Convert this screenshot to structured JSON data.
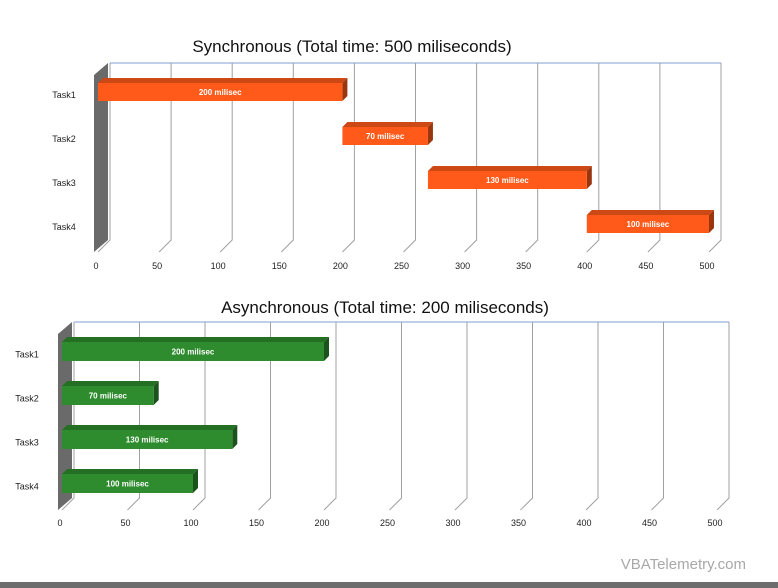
{
  "chart_data": [
    {
      "type": "bar",
      "orientation": "horizontal",
      "style": "3d-floating-bars",
      "title": "Synchronous (Total time: 500 miliseconds)",
      "categories": [
        "Task1",
        "Task2",
        "Task3",
        "Task4"
      ],
      "starts": [
        0,
        200,
        270,
        400
      ],
      "values": [
        200,
        70,
        130,
        100
      ],
      "data_labels": [
        "200 milisec",
        "70 milisec",
        "130 milisec",
        "100 milisec"
      ],
      "xlim": [
        0,
        500
      ],
      "xticks": [
        "0",
        "50",
        "100",
        "150",
        "200",
        "250",
        "300",
        "350",
        "400",
        "450",
        "500"
      ],
      "grid": true,
      "color": "#ff5a1a"
    },
    {
      "type": "bar",
      "orientation": "horizontal",
      "style": "3d-floating-bars",
      "title": "Asynchronous (Total time: 200 miliseconds)",
      "categories": [
        "Task1",
        "Task2",
        "Task3",
        "Task4"
      ],
      "starts": [
        0,
        0,
        0,
        0
      ],
      "values": [
        200,
        70,
        130,
        100
      ],
      "data_labels": [
        "200 milisec",
        "70 milisec",
        "130 milisec",
        "100 milisec"
      ],
      "xlim": [
        0,
        500
      ],
      "xticks": [
        "0",
        "50",
        "100",
        "150",
        "200",
        "250",
        "300",
        "350",
        "400",
        "450",
        "500"
      ],
      "grid": true,
      "color": "#2e8b2e"
    }
  ],
  "watermark": "VBATelemetry.com"
}
